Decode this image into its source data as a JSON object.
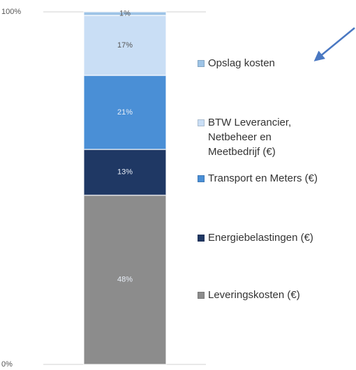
{
  "chart_data": {
    "type": "stacked_bar",
    "categories": [
      null
    ],
    "series": [
      {
        "name": "Leveringskosten (€)",
        "color": "#8c8c8c",
        "values": [
          48
        ],
        "value_labels": [
          "48%"
        ]
      },
      {
        "name": "Energiebelastingen (€)",
        "color": "#1f3864",
        "values": [
          13
        ],
        "value_labels": [
          "13%"
        ]
      },
      {
        "name": "Transport en Meters (€)",
        "color": "#4a8fd6",
        "values": [
          21
        ],
        "value_labels": [
          "21%"
        ]
      },
      {
        "name": "BTW Leverancier, Netbeheer en Meetbedrijf  (€)",
        "color": "#c9def5",
        "values": [
          17
        ],
        "value_labels": [
          "17%"
        ]
      },
      {
        "name": "Opslag kosten",
        "color": "#9dc3e6",
        "values": [
          1
        ],
        "value_labels": [
          "1%"
        ]
      }
    ],
    "ylim": [
      0,
      100
    ],
    "yticks": [
      {
        "value": 0,
        "label": "0%"
      },
      {
        "value": 100,
        "label": "100%"
      }
    ],
    "grid": true
  }
}
